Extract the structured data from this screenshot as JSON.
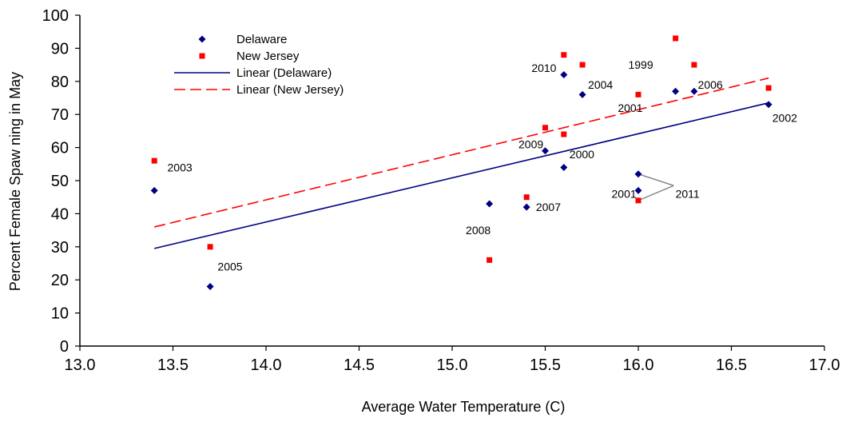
{
  "chart_data": {
    "type": "scatter",
    "xlabel": "Average Water Temperature (C)",
    "ylabel": "Percent Female Spaw ning in May",
    "xlim": [
      13.0,
      17.0
    ],
    "ylim": [
      0,
      100
    ],
    "x_ticks": [
      "13.0",
      "13.5",
      "14.0",
      "14.5",
      "15.0",
      "15.5",
      "16.0",
      "16.5",
      "17.0"
    ],
    "y_ticks": [
      "0",
      "10",
      "20",
      "30",
      "40",
      "50",
      "60",
      "70",
      "80",
      "90",
      "100"
    ],
    "grid": false,
    "legend_position": "top-left",
    "colors": {
      "delaware": "#000080",
      "new_jersey": "#ff0000",
      "callout_line": "#808080"
    },
    "series": [
      {
        "name": "Delaware",
        "marker": "diamond",
        "points": [
          {
            "x": 13.4,
            "y": 47
          },
          {
            "x": 13.7,
            "y": 18
          },
          {
            "x": 15.2,
            "y": 43
          },
          {
            "x": 15.4,
            "y": 42
          },
          {
            "x": 15.5,
            "y": 59
          },
          {
            "x": 15.6,
            "y": 54
          },
          {
            "x": 15.6,
            "y": 82
          },
          {
            "x": 15.7,
            "y": 76
          },
          {
            "x": 16.0,
            "y": 52
          },
          {
            "x": 16.0,
            "y": 47
          },
          {
            "x": 16.2,
            "y": 77
          },
          {
            "x": 16.3,
            "y": 77
          },
          {
            "x": 16.7,
            "y": 73
          }
        ]
      },
      {
        "name": "New Jersey",
        "marker": "square",
        "points": [
          {
            "x": 13.4,
            "y": 56
          },
          {
            "x": 13.7,
            "y": 30
          },
          {
            "x": 15.2,
            "y": 26
          },
          {
            "x": 15.4,
            "y": 45
          },
          {
            "x": 15.5,
            "y": 66
          },
          {
            "x": 15.6,
            "y": 64
          },
          {
            "x": 15.6,
            "y": 88
          },
          {
            "x": 15.7,
            "y": 85
          },
          {
            "x": 16.0,
            "y": 76
          },
          {
            "x": 16.0,
            "y": 44
          },
          {
            "x": 16.2,
            "y": 93
          },
          {
            "x": 16.3,
            "y": 85
          },
          {
            "x": 16.7,
            "y": 78
          }
        ]
      }
    ],
    "trendlines": [
      {
        "name": "Linear (Delaware)",
        "style": "solid",
        "x": [
          13.4,
          16.7
        ],
        "y": [
          29.5,
          73.5
        ]
      },
      {
        "name": "Linear (New Jersey)",
        "style": "dashed",
        "x": [
          13.4,
          16.7
        ],
        "y": [
          36,
          81
        ]
      }
    ],
    "annotations": [
      {
        "text": "2003",
        "x": 13.47,
        "y": 54,
        "anchor": "start"
      },
      {
        "text": "2005",
        "x": 13.74,
        "y": 24,
        "anchor": "start"
      },
      {
        "text": "2008",
        "x": 15.14,
        "y": 35,
        "anchor": "middle"
      },
      {
        "text": "2007",
        "x": 15.45,
        "y": 42,
        "anchor": "start"
      },
      {
        "text": "2009",
        "x": 15.49,
        "y": 61,
        "anchor": "end"
      },
      {
        "text": "2000",
        "x": 15.63,
        "y": 58,
        "anchor": "start"
      },
      {
        "text": "2010",
        "x": 15.56,
        "y": 84,
        "anchor": "end"
      },
      {
        "text": "2004",
        "x": 15.73,
        "y": 79,
        "anchor": "start"
      },
      {
        "text": "2001",
        "x": 15.89,
        "y": 72,
        "anchor": "start"
      },
      {
        "text": "1999",
        "x": 16.08,
        "y": 85,
        "anchor": "end"
      },
      {
        "text": "2006",
        "x": 16.32,
        "y": 79,
        "anchor": "start"
      },
      {
        "text": "2002",
        "x": 16.72,
        "y": 69,
        "anchor": "start"
      },
      {
        "text": "2001",
        "x": 15.99,
        "y": 46,
        "anchor": "end"
      },
      {
        "text": "2011",
        "x": 16.2,
        "y": 46,
        "anchor": "start"
      }
    ],
    "callout_lines": [
      {
        "from": [
          16.0,
          52
        ],
        "to": [
          16.19,
          48.5
        ]
      },
      {
        "from": [
          16.0,
          44
        ],
        "to": [
          16.19,
          48.5
        ]
      }
    ],
    "legend": [
      {
        "label": "Delaware",
        "kind": "diamond"
      },
      {
        "label": "New Jersey",
        "kind": "square"
      },
      {
        "label": "Linear (Delaware)",
        "kind": "solid-line"
      },
      {
        "label": "Linear (New Jersey)",
        "kind": "dashed-line"
      }
    ]
  }
}
